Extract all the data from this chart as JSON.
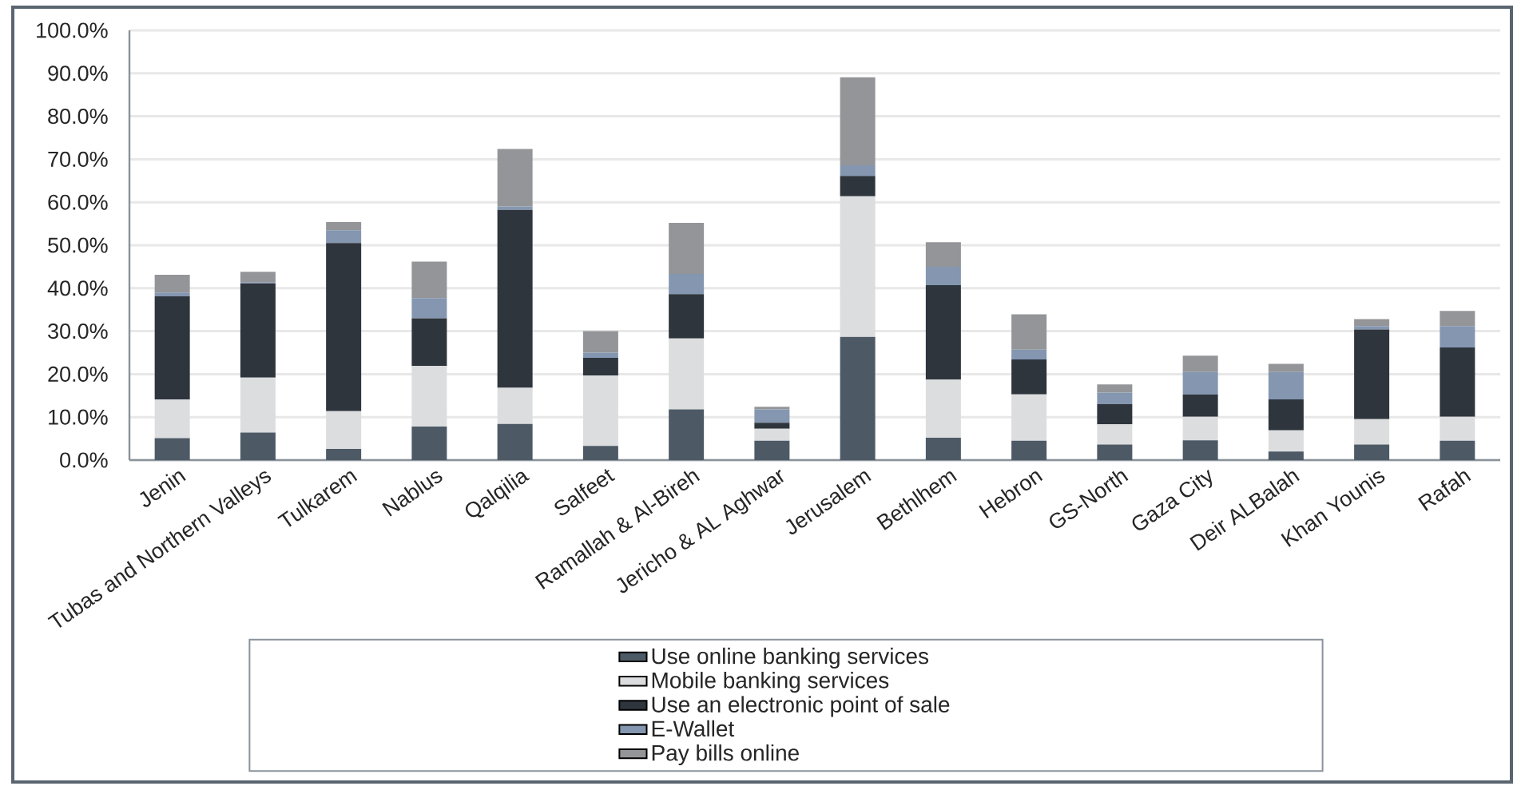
{
  "chart_data": {
    "type": "bar",
    "stacked": true,
    "grid": "y",
    "legend": "bottom",
    "categories": [
      "Jenin",
      "Tubas and Northern Valleys",
      "Tulkarem",
      "Nablus",
      "Qalqilia",
      "Salfeet",
      "Ramallah & Al-Bireh",
      "Jericho & AL Aghwar",
      "Jerusalem",
      "Bethlhem",
      "Hebron",
      "GS-North",
      "Gaza City",
      "Deir ALBalah",
      "Khan Younis",
      "Rafah"
    ],
    "series": [
      {
        "name": "Use online banking services",
        "color": "#4d5a66",
        "values": [
          5.1,
          6.4,
          2.6,
          7.8,
          8.4,
          3.3,
          11.8,
          4.5,
          28.7,
          5.2,
          4.5,
          3.6,
          4.6,
          2.0,
          3.6,
          4.5
        ]
      },
      {
        "name": "Mobile banking services",
        "color": "#dcdddf",
        "values": [
          9.0,
          12.8,
          8.8,
          14.1,
          8.4,
          16.4,
          16.5,
          2.8,
          32.7,
          13.5,
          10.8,
          4.7,
          5.5,
          4.9,
          5.9,
          5.6
        ]
      },
      {
        "name": "Use an electronic point of sale",
        "color": "#2e353d",
        "values": [
          24.0,
          21.9,
          39.1,
          11.1,
          41.4,
          4.1,
          10.3,
          1.4,
          4.7,
          22.0,
          8.1,
          4.7,
          5.2,
          7.2,
          20.9,
          16.1
        ]
      },
      {
        "name": "E-Wallet",
        "color": "#8496b0",
        "values": [
          0.9,
          0.3,
          3.0,
          4.7,
          0.8,
          1.2,
          4.7,
          3.1,
          2.5,
          4.3,
          2.3,
          2.7,
          5.2,
          6.4,
          0.8,
          5.0
        ]
      },
      {
        "name": "Pay bills online",
        "color": "#939598",
        "values": [
          4.1,
          2.4,
          1.9,
          8.5,
          13.4,
          5.0,
          11.9,
          0.6,
          20.5,
          5.7,
          8.2,
          1.9,
          3.8,
          1.9,
          1.6,
          3.5
        ]
      }
    ],
    "ylim": [
      0,
      100
    ],
    "yticks": [
      {
        "value": 0,
        "label": "0.0%"
      },
      {
        "value": 10,
        "label": "10.0%"
      },
      {
        "value": 20,
        "label": "20.0%"
      },
      {
        "value": 30,
        "label": "30.0%"
      },
      {
        "value": 40,
        "label": "40.0%"
      },
      {
        "value": 50,
        "label": "50.0%"
      },
      {
        "value": 60,
        "label": "60.0%"
      },
      {
        "value": 70,
        "label": "70.0%"
      },
      {
        "value": 80,
        "label": "80.0%"
      },
      {
        "value": 90,
        "label": "90.0%"
      },
      {
        "value": 100,
        "label": "100.0%"
      }
    ]
  }
}
